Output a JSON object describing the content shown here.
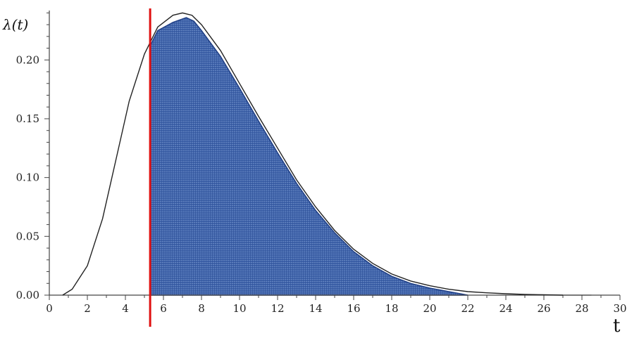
{
  "chart_data": {
    "type": "line",
    "title": "",
    "ylabel": "λ(t)",
    "xlabel": "t",
    "xlim": [
      0,
      30
    ],
    "ylim": [
      0,
      0.24
    ],
    "xticks": [
      0,
      2,
      4,
      6,
      8,
      10,
      12,
      14,
      16,
      18,
      20,
      22,
      24,
      26,
      28,
      30
    ],
    "yticks": [
      0.0,
      0.05,
      0.1,
      0.15,
      0.2
    ],
    "xtick_labels": [
      "0",
      "2",
      "4",
      "6",
      "8",
      "10",
      "12",
      "14",
      "16",
      "18",
      "20",
      "22",
      "24",
      "26",
      "28",
      "30"
    ],
    "ytick_labels": [
      "0.00",
      "0.05",
      "0.10",
      "0.15",
      "0.20"
    ],
    "curve": {
      "color": "#222222",
      "points": [
        [
          0.7,
          0.0
        ],
        [
          1.2,
          0.005
        ],
        [
          2.0,
          0.025
        ],
        [
          2.8,
          0.065
        ],
        [
          3.5,
          0.115
        ],
        [
          4.2,
          0.165
        ],
        [
          5.0,
          0.205
        ],
        [
          5.7,
          0.228
        ],
        [
          6.5,
          0.238
        ],
        [
          7.0,
          0.24
        ],
        [
          7.5,
          0.238
        ],
        [
          8.0,
          0.23
        ],
        [
          9.0,
          0.208
        ],
        [
          10.0,
          0.18
        ],
        [
          11.0,
          0.152
        ],
        [
          12.0,
          0.125
        ],
        [
          13.0,
          0.098
        ],
        [
          14.0,
          0.075
        ],
        [
          15.0,
          0.055
        ],
        [
          16.0,
          0.039
        ],
        [
          17.0,
          0.027
        ],
        [
          18.0,
          0.018
        ],
        [
          19.0,
          0.012
        ],
        [
          20.0,
          0.008
        ],
        [
          21.0,
          0.005
        ],
        [
          22.0,
          0.003
        ],
        [
          23.0,
          0.002
        ],
        [
          24.0,
          0.0012
        ],
        [
          25.0,
          0.0006
        ],
        [
          26.0,
          0.0003
        ],
        [
          27.0,
          0.0
        ]
      ]
    },
    "shaded_region": {
      "x_start": 5.3,
      "x_end": 22.0,
      "fill_color": "#3a5fa8",
      "edge_color": "#1f3f86",
      "points": [
        [
          5.3,
          0.0
        ],
        [
          5.3,
          0.212
        ],
        [
          5.7,
          0.225
        ],
        [
          6.5,
          0.232
        ],
        [
          7.2,
          0.236
        ],
        [
          7.6,
          0.233
        ],
        [
          8.0,
          0.225
        ],
        [
          9.0,
          0.203
        ],
        [
          10.0,
          0.176
        ],
        [
          11.0,
          0.148
        ],
        [
          12.0,
          0.121
        ],
        [
          13.0,
          0.095
        ],
        [
          14.0,
          0.072
        ],
        [
          15.0,
          0.053
        ],
        [
          16.0,
          0.037
        ],
        [
          17.0,
          0.025
        ],
        [
          18.0,
          0.016
        ],
        [
          19.0,
          0.01
        ],
        [
          20.0,
          0.006
        ],
        [
          21.0,
          0.003
        ],
        [
          22.0,
          0.0
        ]
      ]
    },
    "vertical_line": {
      "x": 5.3,
      "color": "#e01010"
    }
  }
}
